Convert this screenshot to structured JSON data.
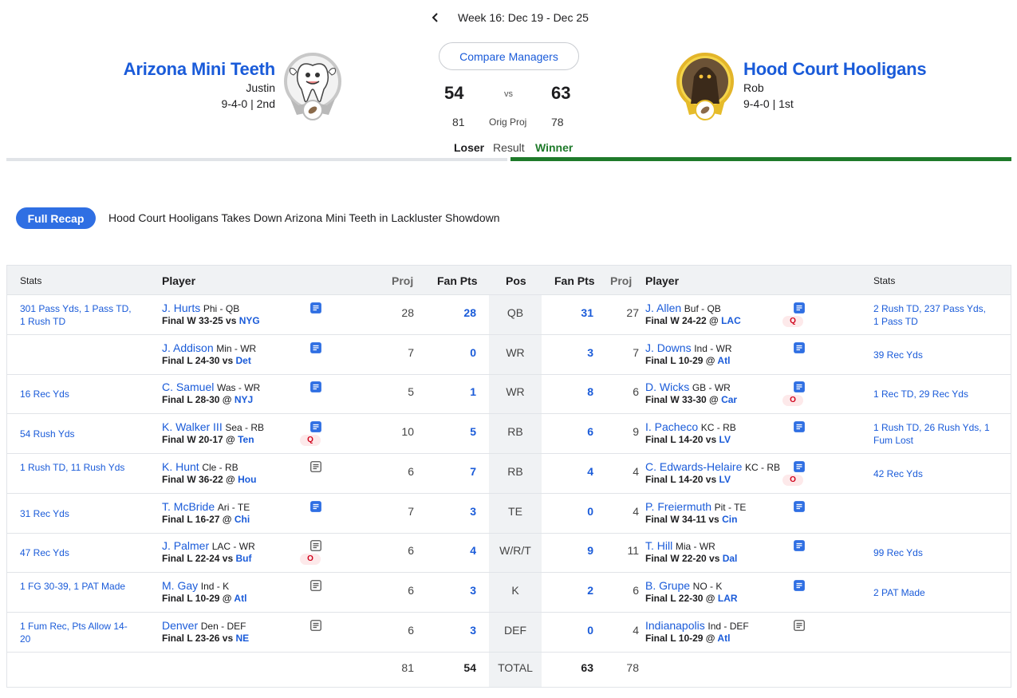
{
  "week": {
    "label": "Week 16: Dec 19 - Dec 25"
  },
  "left_team": {
    "name": "Arizona Mini Teeth",
    "manager": "Justin",
    "record": "9-4-0 | 2nd",
    "score": "54",
    "proj": "81",
    "result": "Loser"
  },
  "right_team": {
    "name": "Hood Court Hooligans",
    "manager": "Rob",
    "record": "9-4-0 | 1st",
    "score": "63",
    "proj": "78",
    "result": "Winner"
  },
  "compare_label": "Compare Managers",
  "vs_label": "vs",
  "orig_proj_label": "Orig Proj",
  "result_label": "Result",
  "recap": {
    "button": "Full Recap",
    "headline": "Hood Court Hooligans Takes Down Arizona Mini Teeth in Lackluster Showdown"
  },
  "headers": {
    "stats": "Stats",
    "player": "Player",
    "proj": "Proj",
    "fan_pts": "Fan Pts",
    "pos": "Pos"
  },
  "colors": {
    "accent": "#1a5bd9",
    "winner": "#1e7a2a",
    "status": "#d0021b"
  },
  "rows": [
    {
      "pos": "QB",
      "left": {
        "stats": "301 Pass Yds, 1 Pass TD, 1 Rush TD",
        "name": "J. Hurts",
        "team": "Phi - QB",
        "game": "Final W 33-25 vs",
        "opp": "NYG",
        "note": "note-blue-icon",
        "status": "",
        "proj": "28",
        "pts": "28"
      },
      "right": {
        "stats": "2 Rush TD, 237 Pass Yds, 1 Pass TD",
        "name": "J. Allen",
        "team": "Buf - QB",
        "game": "Final W 24-22 @",
        "opp": "LAC",
        "note": "note-blue-icon",
        "status": "Q",
        "proj": "27",
        "pts": "31"
      }
    },
    {
      "pos": "WR",
      "left": {
        "stats": "",
        "name": "J. Addison",
        "team": "Min - WR",
        "game": "Final L 24-30 vs",
        "opp": "Det",
        "note": "note-blue-icon",
        "status": "",
        "proj": "7",
        "pts": "0"
      },
      "right": {
        "stats": "39 Rec Yds",
        "name": "J. Downs",
        "team": "Ind - WR",
        "game": "Final L 10-29 @",
        "opp": "Atl",
        "note": "note-blue-icon",
        "status": "",
        "proj": "7",
        "pts": "3"
      }
    },
    {
      "pos": "WR",
      "left": {
        "stats": "16 Rec Yds",
        "name": "C. Samuel",
        "team": "Was - WR",
        "game": "Final L 28-30 @",
        "opp": "NYJ",
        "note": "note-blue-icon",
        "status": "",
        "proj": "5",
        "pts": "1"
      },
      "right": {
        "stats": "1 Rec TD, 29 Rec Yds",
        "name": "D. Wicks",
        "team": "GB - WR",
        "game": "Final W 33-30 @",
        "opp": "Car",
        "note": "note-blue-icon",
        "status": "O",
        "proj": "6",
        "pts": "8"
      }
    },
    {
      "pos": "RB",
      "left": {
        "stats": "54 Rush Yds",
        "name": "K. Walker III",
        "team": "Sea - RB",
        "game": "Final W 20-17 @",
        "opp": "Ten",
        "note": "note-blue-icon",
        "status": "Q",
        "proj": "10",
        "pts": "5"
      },
      "right": {
        "stats": "1 Rush TD, 26 Rush Yds, 1 Fum Lost",
        "name": "I. Pacheco",
        "team": "KC - RB",
        "game": "Final L 14-20 vs",
        "opp": "LV",
        "note": "note-blue-icon",
        "status": "",
        "proj": "9",
        "pts": "6"
      }
    },
    {
      "pos": "RB",
      "left": {
        "stats": "1 Rush TD, 11 Rush Yds",
        "name": "K. Hunt",
        "team": "Cle - RB",
        "game": "Final W 36-22 @",
        "opp": "Hou",
        "note": "note-grey-icon",
        "status": "",
        "proj": "6",
        "pts": "7"
      },
      "right": {
        "stats": "42 Rec Yds",
        "name": "C. Edwards-Helaire",
        "team": "KC - RB",
        "game": "Final L 14-20 vs",
        "opp": "LV",
        "note": "note-blue-icon",
        "status": "O",
        "proj": "4",
        "pts": "4"
      }
    },
    {
      "pos": "TE",
      "left": {
        "stats": "31 Rec Yds",
        "name": "T. McBride",
        "team": "Ari - TE",
        "game": "Final L 16-27 @",
        "opp": "Chi",
        "note": "note-blue-icon",
        "status": "",
        "proj": "7",
        "pts": "3"
      },
      "right": {
        "stats": "",
        "name": "P. Freiermuth",
        "team": "Pit - TE",
        "game": "Final W 34-11 vs",
        "opp": "Cin",
        "note": "note-blue-icon",
        "status": "",
        "proj": "4",
        "pts": "0"
      }
    },
    {
      "pos": "W/R/T",
      "left": {
        "stats": "47 Rec Yds",
        "name": "J. Palmer",
        "team": "LAC - WR",
        "game": "Final L 22-24 vs",
        "opp": "Buf",
        "note": "note-grey-icon",
        "status": "O",
        "proj": "6",
        "pts": "4"
      },
      "right": {
        "stats": "99 Rec Yds",
        "name": "T. Hill",
        "team": "Mia - WR",
        "game": "Final W 22-20 vs",
        "opp": "Dal",
        "note": "note-blue-icon",
        "status": "",
        "proj": "11",
        "pts": "9"
      }
    },
    {
      "pos": "K",
      "left": {
        "stats": "1 FG 30-39, 1 PAT Made",
        "name": "M. Gay",
        "team": "Ind - K",
        "game": "Final L 10-29 @",
        "opp": "Atl",
        "note": "note-grey-icon",
        "status": "",
        "proj": "6",
        "pts": "3"
      },
      "right": {
        "stats": "2 PAT Made",
        "name": "B. Grupe",
        "team": "NO - K",
        "game": "Final L 22-30 @",
        "opp": "LAR",
        "note": "note-blue-icon",
        "status": "",
        "proj": "6",
        "pts": "2"
      }
    },
    {
      "pos": "DEF",
      "left": {
        "stats": "1 Fum Rec, Pts Allow 14-20",
        "name": "Denver",
        "team": "Den - DEF",
        "game": "Final L 23-26 vs",
        "opp": "NE",
        "note": "note-grey-icon",
        "status": "",
        "proj": "6",
        "pts": "3"
      },
      "right": {
        "stats": "",
        "name": "Indianapolis",
        "team": "Ind - DEF",
        "game": "Final L 10-29 @",
        "opp": "Atl",
        "note": "note-grey-icon",
        "status": "",
        "proj": "4",
        "pts": "0"
      }
    }
  ],
  "totals": {
    "label": "TOTAL",
    "left_proj": "81",
    "left_pts": "54",
    "right_pts": "63",
    "right_proj": "78"
  }
}
